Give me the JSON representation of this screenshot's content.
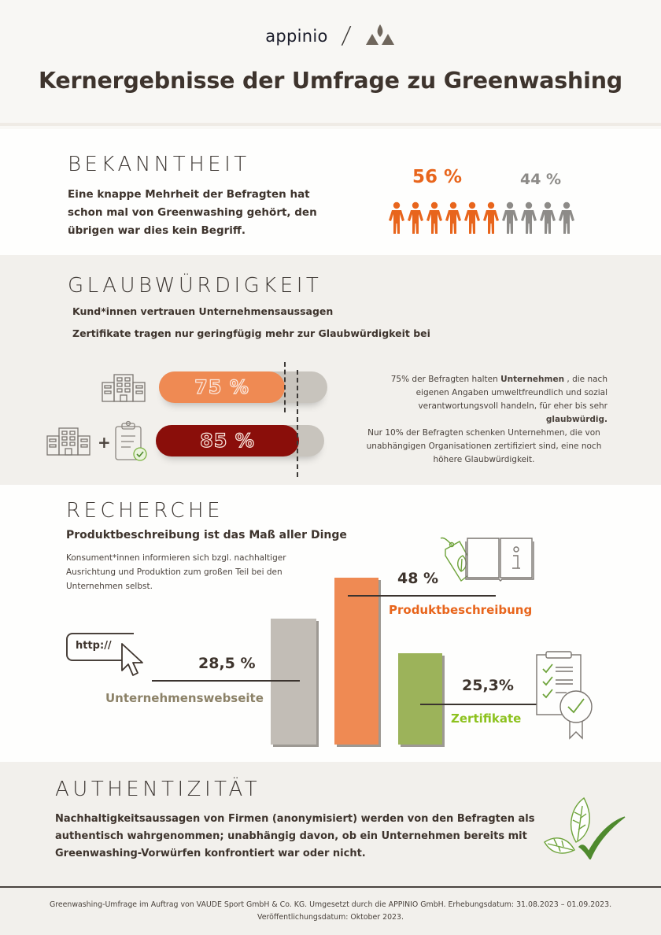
{
  "header": {
    "logo_left": "appinio",
    "separator": "/",
    "logo_right": "vaude-mountain-logo",
    "title": "Kernergebnisse der Umfrage zu Greenwashing"
  },
  "bekanntheit": {
    "title": "BEKANNTHEIT",
    "text": "Eine knappe Mehrheit der Befragten hat schon mal von Greenwashing gehört, den übrigen war dies kein Begriff.",
    "known_pct": "56 %",
    "unknown_pct": "44 %",
    "people_known": 6,
    "people_unknown": 4,
    "colors": {
      "known": "#e8651c",
      "unknown": "#8d8b88"
    }
  },
  "glaubwuerdigkeit": {
    "title": "GLAUBWÜRDIGKEIT",
    "subtitle_1": "Kund*innen vertrauen Unternehmensaussagen",
    "subtitle_2": "Zertifikate tragen nur geringfügig mehr zur Glaubwürdigkeit bei",
    "bars": [
      {
        "label": "75 %",
        "value": 75,
        "icons": [
          "building-icon"
        ],
        "color": "#ef8a53"
      },
      {
        "label": "85 %",
        "value": 85,
        "icons": [
          "building-icon",
          "plus-icon",
          "certified-clipboard-icon"
        ],
        "color": "#8a0e0a"
      }
    ],
    "desc_1_pre": "75% der Befragten halten ",
    "desc_1_bold": "Unternehmen",
    "desc_1_mid": " , die nach eigenen Angaben umweltfreundlich und sozial verantwortungsvoll handeln, für eher bis sehr ",
    "desc_1_bold2": "glaubwürdig.",
    "desc_2": "Nur 10% der Befragten schenken Unternehmen, die von unabhängigen Organisationen zertifiziert sind, eine noch höhere Glaubwürdigkeit."
  },
  "recherche": {
    "title": "RECHERCHE",
    "subtitle": "Produktbeschreibung ist das Maß aller Dinge",
    "text": "Konsument*innen informieren sich bzgl. nachhaltiger Ausrichtung und Produktion zum großen Teil bei den Unternehmen selbst.",
    "http_label": "http://",
    "items": [
      {
        "label": "Unternehmenswebseite",
        "value_label": "28,5 %",
        "value": 28.5,
        "color": "#c2bdb6",
        "label_color": "#8c8268"
      },
      {
        "label": "Produktbeschreibung",
        "value_label": "48 %",
        "value": 48,
        "color": "#ef8a53",
        "label_color": "#e8651c"
      },
      {
        "label": "Zertifikate",
        "value_label": "25,3%",
        "value": 25.3,
        "color": "#9cb35a",
        "label_color": "#8dc21f"
      }
    ]
  },
  "authentizitaet": {
    "title": "AUTHENTIZITÄT",
    "text": "Nachhaltigkeitsaussagen von Firmen (anonymisiert) werden von den Befragten als authentisch wahrgenommen; unabhängig davon, ob ein Unternehmen bereits mit Greenwashing-Vorwürfen konfrontiert war oder nicht."
  },
  "footer": {
    "line_1": "Greenwashing-Umfrage im Auftrag von VAUDE Sport GmbH & Co. KG. Umgesetzt durch die APPINIO GmbH. Erhebungsdatum: 31.08.2023 – 01.09.2023.",
    "line_2": "Veröffentlichungsdatum: Oktober 2023."
  },
  "chart_data": [
    {
      "type": "bar",
      "title": "Bekanntheit",
      "categories": [
        "Schon von Greenwashing gehört",
        "Kein Begriff"
      ],
      "values": [
        56,
        44
      ],
      "unit": "%"
    },
    {
      "type": "bar",
      "title": "Glaubwürdigkeit",
      "categories": [
        "Unternehmen",
        "Unternehmen + Zertifikat"
      ],
      "values": [
        75,
        85
      ],
      "unit": "%"
    },
    {
      "type": "bar",
      "title": "Recherche",
      "categories": [
        "Unternehmenswebseite",
        "Produktbeschreibung",
        "Zertifikate"
      ],
      "values": [
        28.5,
        48,
        25.3
      ],
      "unit": "%"
    }
  ]
}
